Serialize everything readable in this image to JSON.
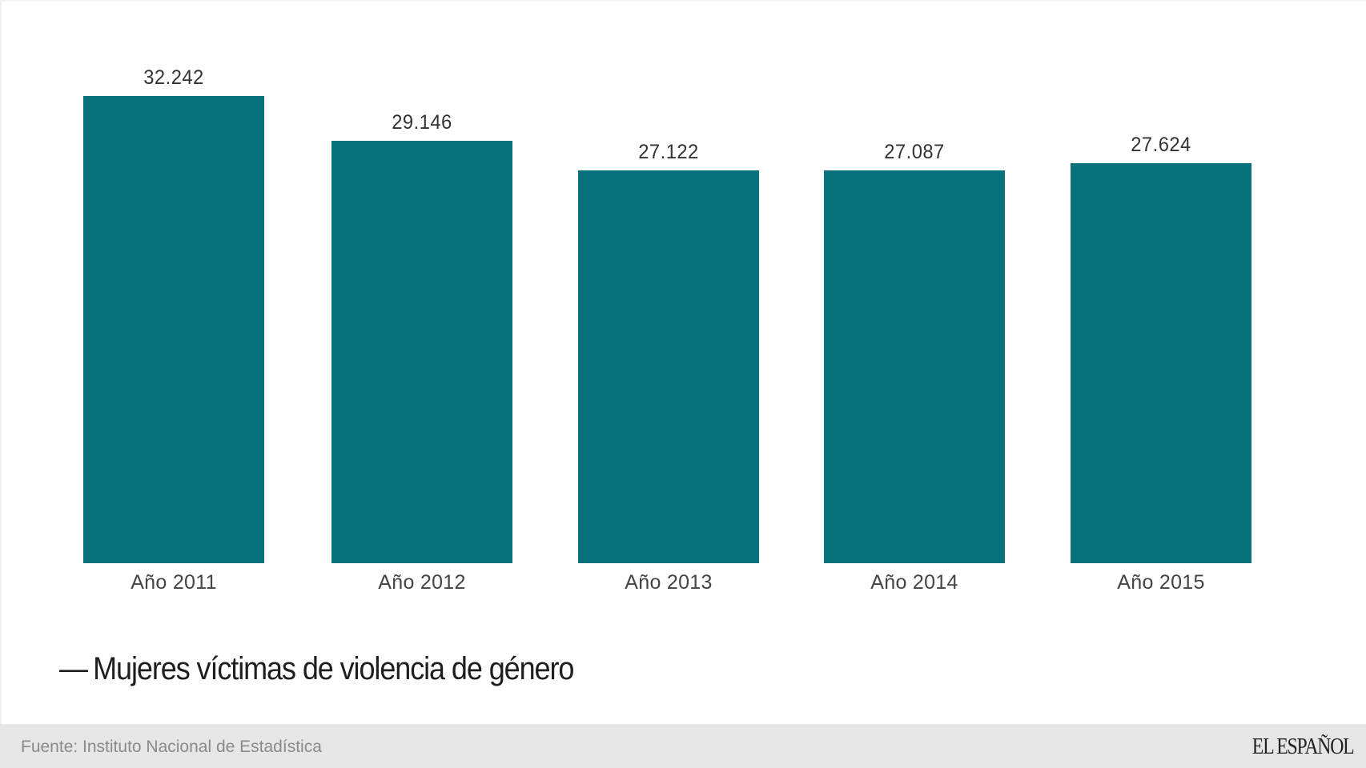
{
  "chart_data": {
    "type": "bar",
    "title": "",
    "categories": [
      "Año 2011",
      "Año 2012",
      "Año 2013",
      "Año 2014",
      "Año 2015"
    ],
    "values": [
      32242,
      29146,
      27122,
      27087,
      27624
    ],
    "value_labels": [
      "32.242",
      "29.146",
      "27.122",
      "27.087",
      "27.624"
    ],
    "series": [
      {
        "name": "Mujeres víctimas de violencia de género",
        "values": [
          32242,
          29146,
          27122,
          27087,
          27624
        ],
        "color": "#09717c"
      }
    ],
    "xlabel": "",
    "ylabel": "",
    "ylim": [
      0,
      32242
    ],
    "grid": false,
    "legend_position": "bottom-left"
  },
  "legend": {
    "dash": "—",
    "label": "Mujeres víctimas de violencia de género"
  },
  "footer": {
    "source": "Fuente: Instituto Nacional de Estadística",
    "logo": "EL ESPAÑOL"
  },
  "colors": {
    "bar": "#09717c",
    "footer_bg": "#e6e6e6"
  }
}
